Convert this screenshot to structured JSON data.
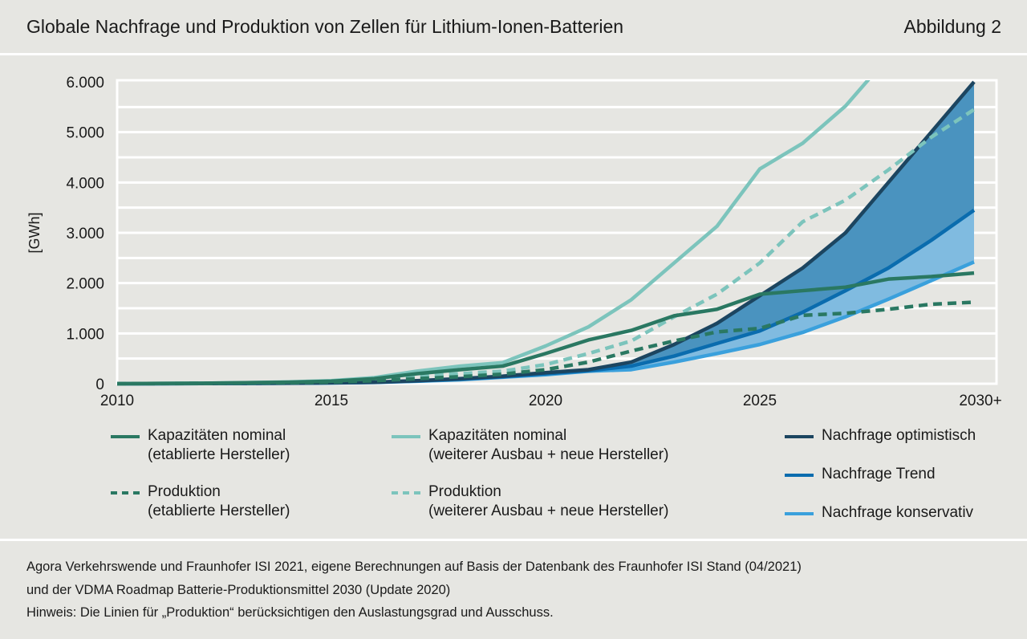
{
  "header": {
    "title": "Globale Nachfrage und Produktion von Zellen für Lithium-Ionen-Batterien",
    "figure_label": "Abbildung 2"
  },
  "chart_data": {
    "type": "line",
    "title": "",
    "ylabel": "[GWh]",
    "xlabel": "",
    "ylim": [
      0,
      6000
    ],
    "xlim": [
      2010,
      2030
    ],
    "grid": true,
    "legend_placement": "bottom",
    "yticks": [
      {
        "v": 0,
        "label": "0"
      },
      {
        "v": 1000,
        "label": "1.000"
      },
      {
        "v": 2000,
        "label": "2.000"
      },
      {
        "v": 3000,
        "label": "3.000"
      },
      {
        "v": 4000,
        "label": "4.000"
      },
      {
        "v": 5000,
        "label": "5.000"
      },
      {
        "v": 6000,
        "label": "6.000"
      }
    ],
    "xticks": [
      {
        "v": 2010,
        "label": "2010"
      },
      {
        "v": 2015,
        "label": "2015"
      },
      {
        "v": 2020,
        "label": "2020"
      },
      {
        "v": 2025,
        "label": "2025"
      },
      {
        "v": 2030,
        "label": "2030+"
      }
    ],
    "x": [
      2010,
      2011,
      2012,
      2013,
      2014,
      2015,
      2016,
      2017,
      2018,
      2019,
      2020,
      2021,
      2022,
      2023,
      2024,
      2025,
      2026,
      2027,
      2028,
      2029,
      2030
    ],
    "series": [
      {
        "name": "Kapazitäten nominal (etablierte Hersteller)",
        "line1": "Kapazitäten nominal",
        "line2": "(etablierte Hersteller)",
        "color": "#2a7862",
        "dash": false,
        "values": [
          0,
          5,
          10,
          20,
          30,
          50,
          100,
          200,
          280,
          350,
          600,
          870,
          1060,
          1350,
          1480,
          1780,
          1850,
          1920,
          2080,
          2130,
          2200
        ]
      },
      {
        "name": "Kapazitäten nominal (weiterer Ausbau + neue Hersteller)",
        "line1": "Kapazitäten nominal",
        "line2": "(weiterer Ausbau + neue Hersteller)",
        "color": "#7cc4bc",
        "dash": false,
        "values": [
          0,
          5,
          10,
          20,
          35,
          60,
          120,
          250,
          350,
          420,
          750,
          1130,
          1670,
          2400,
          3130,
          4270,
          4780,
          5520,
          6500,
          null,
          null
        ]
      },
      {
        "name": "Produktion (etablierte Hersteller)",
        "line1": "Produktion",
        "line2": "(etablierte Hersteller)",
        "color": "#2a7862",
        "dash": true,
        "values": [
          0,
          3,
          6,
          12,
          20,
          30,
          60,
          100,
          140,
          190,
          280,
          430,
          650,
          850,
          1030,
          1100,
          1360,
          1400,
          1480,
          1580,
          1620
        ]
      },
      {
        "name": "Produktion (weiterer Ausbau + neue Hersteller)",
        "line1": "Produktion",
        "line2": "(weiterer Ausbau + neue Hersteller)",
        "color": "#7cc4bc",
        "dash": true,
        "values": [
          0,
          4,
          8,
          15,
          30,
          50,
          100,
          150,
          200,
          250,
          380,
          600,
          850,
          1330,
          1780,
          2400,
          3220,
          3650,
          4250,
          4900,
          5450
        ]
      },
      {
        "name": "Nachfrage optimistisch",
        "line1": "Nachfrage optimistisch",
        "color": "#1c4560",
        "dash": false,
        "values": [
          0,
          2,
          4,
          8,
          12,
          20,
          30,
          60,
          100,
          150,
          220,
          280,
          430,
          780,
          1200,
          1750,
          2300,
          3000,
          4000,
          5000,
          6000
        ]
      },
      {
        "name": "Nachfrage Trend",
        "line1": "Nachfrage Trend",
        "color": "#0a6cae",
        "dash": false,
        "values": [
          0,
          2,
          4,
          7,
          11,
          18,
          28,
          55,
          90,
          140,
          200,
          260,
          350,
          550,
          800,
          1050,
          1420,
          1850,
          2300,
          2850,
          3450
        ]
      },
      {
        "name": "Nachfrage konservativ",
        "line1": "Nachfrage konservativ",
        "color": "#3aa0dc",
        "dash": false,
        "values": [
          0,
          2,
          4,
          6,
          10,
          16,
          25,
          50,
          80,
          130,
          180,
          250,
          280,
          430,
          600,
          780,
          1020,
          1330,
          1680,
          2050,
          2420
        ]
      }
    ],
    "band_colors": {
      "optimistic_trend": "#4a93bf",
      "trend_conservative": "#80bbe0"
    }
  },
  "footer": {
    "line1": "Agora Verkehrswende und Fraunhofer ISI 2021, eigene Berechnungen auf Basis der Datenbank des Fraunhofer ISI Stand (04/2021)",
    "line2": "und der VDMA Roadmap Batterie-Produktionsmittel 2030 (Update 2020)",
    "line3": "Hinweis: Die Linien für „Produktion“ berücksichtigen den Auslastungsgrad und Ausschuss."
  }
}
